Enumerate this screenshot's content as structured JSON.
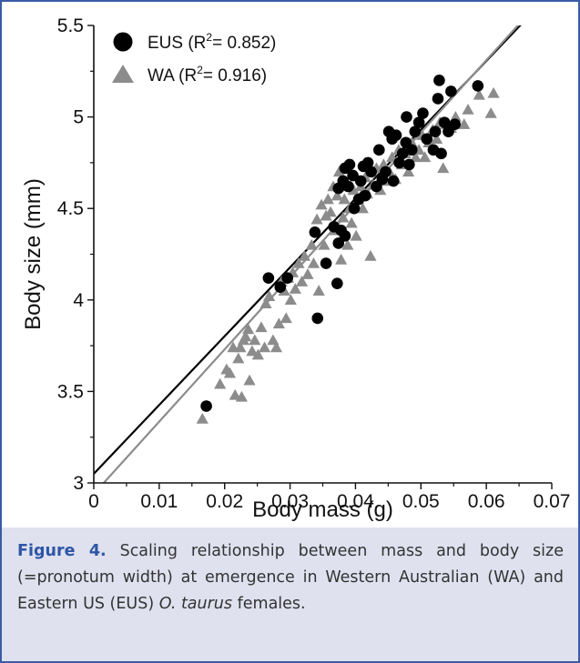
{
  "chart_data": {
    "type": "scatter",
    "xlabel": "Body mass (g)",
    "ylabel": "Body size (mm)",
    "xlim": [
      0,
      0.07
    ],
    "ylim": [
      3,
      5.5
    ],
    "x_ticks": [
      "0",
      "0.01",
      "0.02",
      "0.03",
      "0.04",
      "0.05",
      "0.06",
      "0.07"
    ],
    "y_ticks": [
      "3",
      "3.5",
      "4",
      "4.5",
      "5",
      "5.5"
    ],
    "grid": false,
    "legend_position": "top-left",
    "series": [
      {
        "name": "EUS",
        "legend_r2": "0.852",
        "marker": "circle",
        "color": "#000000",
        "fit_line": {
          "intercept": 3.05,
          "slope": 37.6
        },
        "points": [
          [
            0.0172,
            3.42
          ],
          [
            0.0267,
            4.12
          ],
          [
            0.0285,
            4.07
          ],
          [
            0.0296,
            4.12
          ],
          [
            0.0342,
            3.9
          ],
          [
            0.0338,
            4.37
          ],
          [
            0.0355,
            4.2
          ],
          [
            0.0367,
            4.4
          ],
          [
            0.0372,
            4.09
          ],
          [
            0.0374,
            4.31
          ],
          [
            0.0378,
            4.38
          ],
          [
            0.0384,
            4.35
          ],
          [
            0.0374,
            4.61
          ],
          [
            0.0381,
            4.65
          ],
          [
            0.0384,
            4.72
          ],
          [
            0.0389,
            4.62
          ],
          [
            0.0391,
            4.74
          ],
          [
            0.0396,
            4.68
          ],
          [
            0.0398,
            4.5
          ],
          [
            0.0405,
            4.55
          ],
          [
            0.0408,
            4.65
          ],
          [
            0.0412,
            4.73
          ],
          [
            0.0415,
            4.57
          ],
          [
            0.0419,
            4.75
          ],
          [
            0.0424,
            4.7
          ],
          [
            0.0432,
            4.62
          ],
          [
            0.0436,
            4.82
          ],
          [
            0.0441,
            4.66
          ],
          [
            0.0446,
            4.7
          ],
          [
            0.0451,
            4.92
          ],
          [
            0.0456,
            4.88
          ],
          [
            0.0462,
            4.9
          ],
          [
            0.0458,
            4.65
          ],
          [
            0.0467,
            4.75
          ],
          [
            0.0472,
            4.8
          ],
          [
            0.0477,
            4.86
          ],
          [
            0.0478,
            5.0
          ],
          [
            0.0482,
            4.74
          ],
          [
            0.0486,
            4.82
          ],
          [
            0.0491,
            4.92
          ],
          [
            0.0497,
            4.97
          ],
          [
            0.0503,
            5.02
          ],
          [
            0.0509,
            4.88
          ],
          [
            0.0519,
            4.82
          ],
          [
            0.0522,
            4.92
          ],
          [
            0.0526,
            5.1
          ],
          [
            0.0528,
            5.2
          ],
          [
            0.0531,
            4.8
          ],
          [
            0.0536,
            4.97
          ],
          [
            0.0542,
            4.92
          ],
          [
            0.0546,
            5.14
          ],
          [
            0.0552,
            4.96
          ],
          [
            0.0587,
            5.17
          ]
        ]
      },
      {
        "name": "WA",
        "legend_r2": "0.916",
        "marker": "triangle",
        "color": "#8c8c8c",
        "fit_line": {
          "intercept": 2.94,
          "slope": 39.5
        },
        "points": [
          [
            0.0166,
            3.35
          ],
          [
            0.0193,
            3.54
          ],
          [
            0.0203,
            3.62
          ],
          [
            0.0208,
            3.6
          ],
          [
            0.0213,
            3.74
          ],
          [
            0.0216,
            3.48
          ],
          [
            0.0221,
            3.68
          ],
          [
            0.0224,
            3.74
          ],
          [
            0.0226,
            3.47
          ],
          [
            0.0229,
            3.78
          ],
          [
            0.0232,
            3.8
          ],
          [
            0.0236,
            3.84
          ],
          [
            0.0238,
            3.56
          ],
          [
            0.0242,
            3.72
          ],
          [
            0.0246,
            3.78
          ],
          [
            0.0251,
            3.7
          ],
          [
            0.0256,
            3.85
          ],
          [
            0.0261,
            3.74
          ],
          [
            0.0263,
            3.98
          ],
          [
            0.0268,
            4.02
          ],
          [
            0.0274,
            3.78
          ],
          [
            0.0279,
            3.74
          ],
          [
            0.0283,
            3.87
          ],
          [
            0.0287,
            4.1
          ],
          [
            0.0291,
            4.05
          ],
          [
            0.0294,
            3.9
          ],
          [
            0.0297,
            4.12
          ],
          [
            0.0301,
            4.0
          ],
          [
            0.0304,
            4.15
          ],
          [
            0.0308,
            4.06
          ],
          [
            0.0313,
            4.2
          ],
          [
            0.0318,
            4.1
          ],
          [
            0.0322,
            4.24
          ],
          [
            0.0327,
            4.14
          ],
          [
            0.0333,
            4.3
          ],
          [
            0.0336,
            4.2
          ],
          [
            0.0341,
            4.44
          ],
          [
            0.0344,
            4.05
          ],
          [
            0.0348,
            4.52
          ],
          [
            0.0352,
            4.3
          ],
          [
            0.0355,
            4.46
          ],
          [
            0.0358,
            4.55
          ],
          [
            0.0362,
            4.48
          ],
          [
            0.0366,
            4.62
          ],
          [
            0.0369,
            4.38
          ],
          [
            0.0372,
            4.57
          ],
          [
            0.0375,
            4.7
          ],
          [
            0.0378,
            4.22
          ],
          [
            0.0381,
            4.45
          ],
          [
            0.0383,
            4.55
          ],
          [
            0.0386,
            4.62
          ],
          [
            0.0388,
            4.3
          ],
          [
            0.0391,
            4.5
          ],
          [
            0.0394,
            4.42
          ],
          [
            0.0397,
            4.6
          ],
          [
            0.0401,
            4.35
          ],
          [
            0.0404,
            4.55
          ],
          [
            0.0408,
            4.62
          ],
          [
            0.0411,
            4.5
          ],
          [
            0.0415,
            4.67
          ],
          [
            0.0418,
            4.58
          ],
          [
            0.0423,
            4.24
          ],
          [
            0.0427,
            4.63
          ],
          [
            0.0432,
            4.72
          ],
          [
            0.0438,
            4.6
          ],
          [
            0.0443,
            4.74
          ],
          [
            0.0447,
            4.65
          ],
          [
            0.0452,
            4.7
          ],
          [
            0.0456,
            4.78
          ],
          [
            0.0461,
            4.66
          ],
          [
            0.0466,
            4.82
          ],
          [
            0.0471,
            4.74
          ],
          [
            0.0476,
            4.8
          ],
          [
            0.0481,
            4.7
          ],
          [
            0.0486,
            4.86
          ],
          [
            0.0492,
            4.78
          ],
          [
            0.0497,
            4.82
          ],
          [
            0.0502,
            4.9
          ],
          [
            0.0506,
            4.78
          ],
          [
            0.0512,
            4.86
          ],
          [
            0.0518,
            4.93
          ],
          [
            0.0524,
            4.88
          ],
          [
            0.0529,
            4.97
          ],
          [
            0.0534,
            4.72
          ],
          [
            0.0538,
            4.96
          ],
          [
            0.0546,
            4.94
          ],
          [
            0.0553,
            5.0
          ],
          [
            0.0566,
            4.96
          ],
          [
            0.0572,
            5.04
          ],
          [
            0.0589,
            5.12
          ],
          [
            0.0607,
            5.02
          ],
          [
            0.0611,
            5.13
          ]
        ]
      }
    ]
  },
  "caption": {
    "label": "Figure 4.",
    "text_before": " Scaling relationship between mass and body size (=pronotum width) at emergence in Western Australian (WA) and Eastern US (EUS) ",
    "species": "O. taurus",
    "text_after": " females."
  }
}
